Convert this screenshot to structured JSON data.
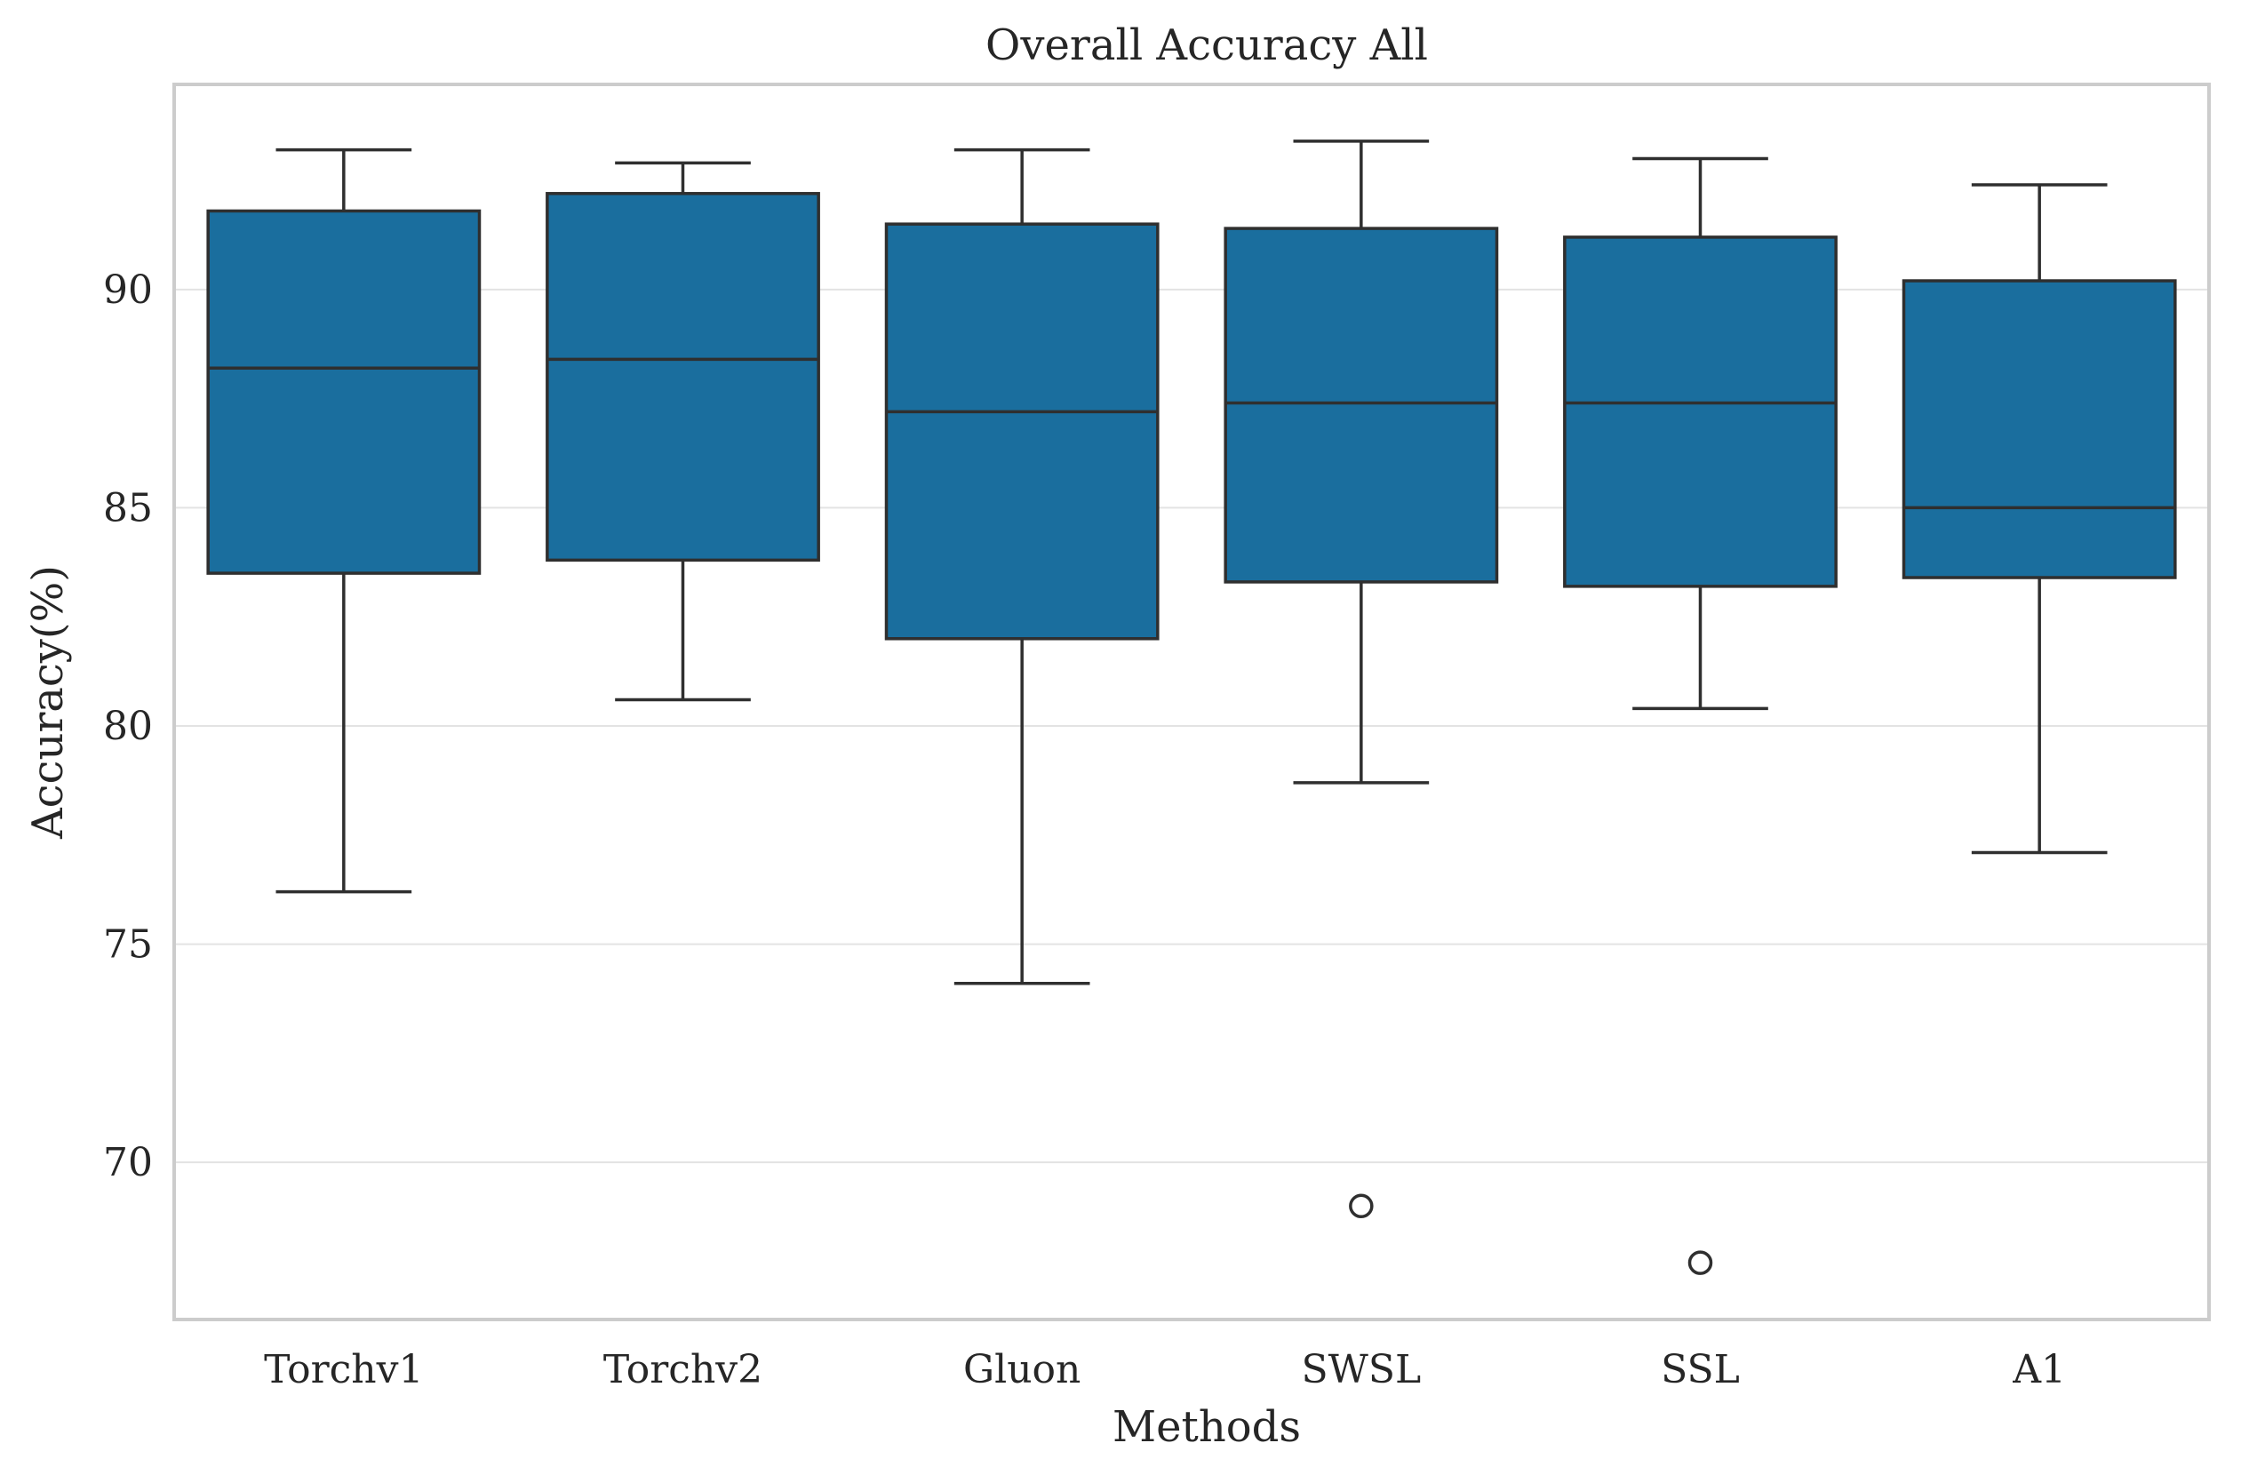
{
  "chart_data": {
    "type": "box",
    "title": "Overall Accuracy All",
    "xlabel": "Methods",
    "ylabel": "Accuracy(%)",
    "categories": [
      "Torchv1",
      "Torchv2",
      "Gluon",
      "SWSL",
      "SSL",
      "A1"
    ],
    "ylim": [
      66.4,
      94.7
    ],
    "yticks": [
      70,
      75,
      80,
      85,
      90
    ],
    "grid": "y",
    "box_color": "#1a6e9e",
    "line_color": "#2f2f2f",
    "frame_color": "#cccccc",
    "grid_color": "#e3e3e3",
    "boxes": [
      {
        "name": "Torchv1",
        "whisker_low": 76.2,
        "q1": 83.5,
        "median": 88.2,
        "q3": 91.8,
        "whisker_high": 93.2,
        "outliers": []
      },
      {
        "name": "Torchv2",
        "whisker_low": 80.6,
        "q1": 83.8,
        "median": 88.4,
        "q3": 92.2,
        "whisker_high": 92.9,
        "outliers": []
      },
      {
        "name": "Gluon",
        "whisker_low": 74.1,
        "q1": 82.0,
        "median": 87.2,
        "q3": 91.5,
        "whisker_high": 93.2,
        "outliers": []
      },
      {
        "name": "SWSL",
        "whisker_low": 78.7,
        "q1": 83.3,
        "median": 87.4,
        "q3": 91.4,
        "whisker_high": 93.4,
        "outliers": [
          69.0
        ]
      },
      {
        "name": "SSL",
        "whisker_low": 80.4,
        "q1": 83.2,
        "median": 87.4,
        "q3": 91.2,
        "whisker_high": 93.0,
        "outliers": [
          67.7
        ]
      },
      {
        "name": "A1",
        "whisker_low": 77.1,
        "q1": 83.4,
        "median": 85.0,
        "q3": 90.2,
        "whisker_high": 92.4,
        "outliers": []
      }
    ]
  }
}
